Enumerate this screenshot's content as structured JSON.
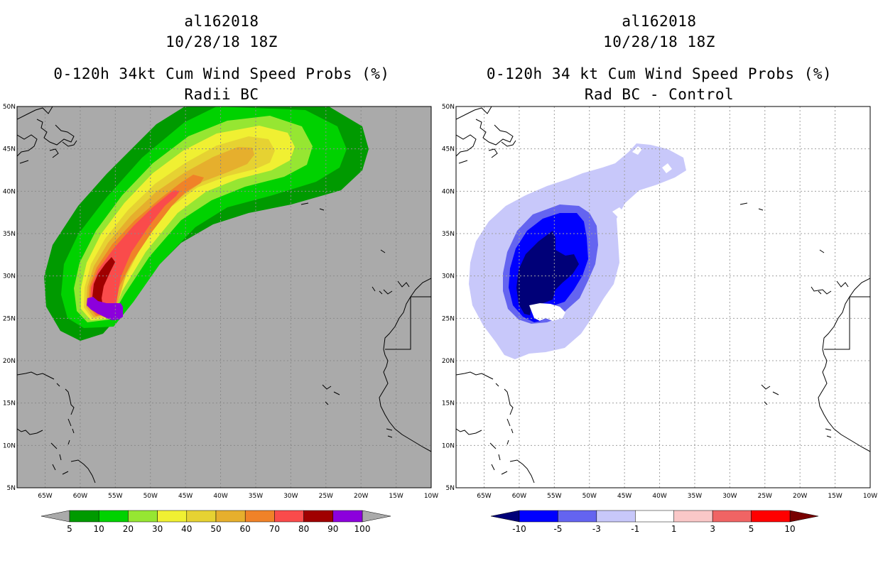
{
  "left_panel": {
    "storm_id": "al162018",
    "datetime": "10/28/18 18Z",
    "product": "0-120h 34kt Cum Wind Speed Probs (%)",
    "subtitle": "Radii BC",
    "background_color": "#aaaaaa"
  },
  "right_panel": {
    "storm_id": "al162018",
    "datetime": "10/28/18 18Z",
    "product": "0-120h 34 kt Cum Wind Speed Probs (%)",
    "subtitle": "Rad BC - Control",
    "background_color": "#ffffff"
  },
  "axes": {
    "lat_labels": [
      "50N",
      "45N",
      "40N",
      "35N",
      "30N",
      "25N",
      "20N",
      "15N",
      "10N",
      "5N"
    ],
    "lon_labels": [
      "65W",
      "60W",
      "55W",
      "50W",
      "45W",
      "40W",
      "35W",
      "30W",
      "25W",
      "20W",
      "15W",
      "10W"
    ],
    "lon_range": [
      -69,
      -10
    ],
    "lat_range": [
      5,
      50
    ]
  },
  "left_colorbar": {
    "labels": [
      "5",
      "10",
      "20",
      "30",
      "40",
      "50",
      "60",
      "70",
      "80",
      "90",
      "100"
    ],
    "colors": [
      "#009a00",
      "#00d200",
      "#96e632",
      "#f0f032",
      "#e6d232",
      "#e6af2d",
      "#f08228",
      "#fa4b4b",
      "#a00000",
      "#8c00dc"
    ],
    "end_color": "#aaaaaa"
  },
  "right_colorbar": {
    "labels": [
      "-10",
      "-5",
      "-3",
      "-1",
      "1",
      "3",
      "5",
      "10"
    ],
    "colors": [
      "#0000ff",
      "#6464f0",
      "#c8c8fa",
      "#ffffff",
      "#fac8c8",
      "#f06464",
      "#ff0000"
    ],
    "low_end_color": "#000078",
    "high_end_color": "#780000"
  }
}
